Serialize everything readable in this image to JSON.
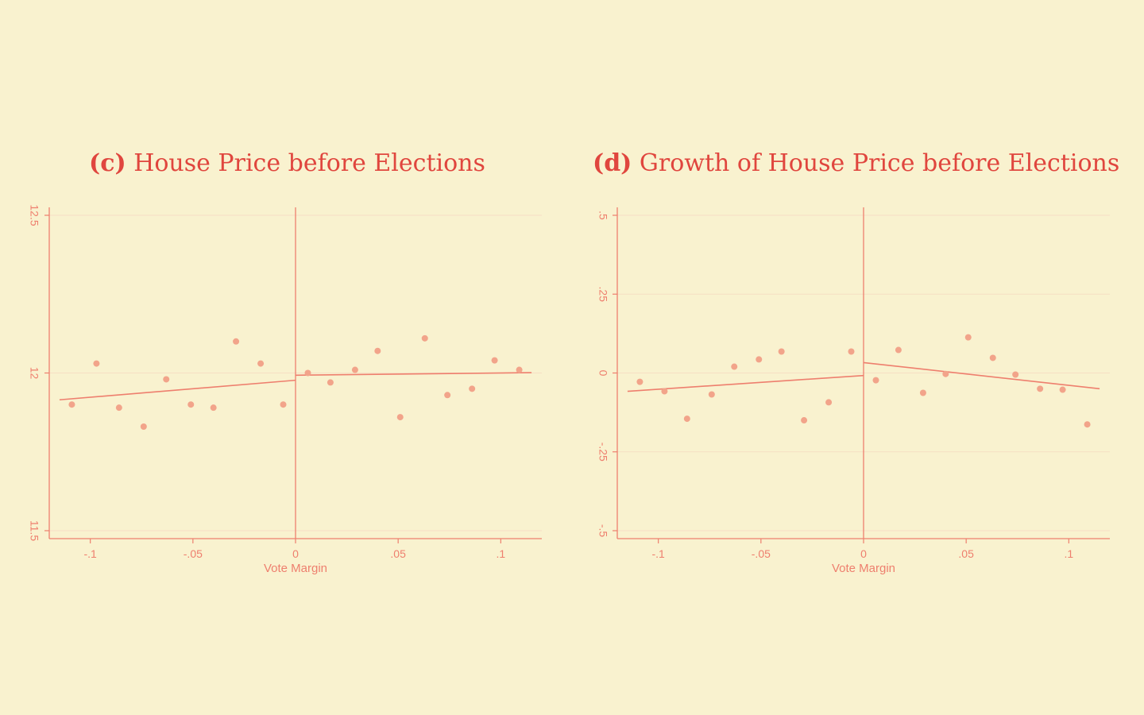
{
  "colors": {
    "background": "#f9f2cf",
    "title": "#e0463e",
    "axis": "#ee7f6e",
    "marker": "#f2a48a",
    "fit_line": "#ee7f6e",
    "grid": "#f6dfc4"
  },
  "panels": [
    {
      "tag": "(c)",
      "title": "House Price before Elections"
    },
    {
      "tag": "(d)",
      "title": "Growth of House Price before Elections"
    }
  ],
  "chart_data": [
    {
      "type": "scatter",
      "title": "(c) House Price before Elections",
      "xlabel": "Vote Margin",
      "ylabel": "",
      "xlim": [
        -0.12,
        0.12
      ],
      "ylim": [
        11.5,
        12.5
      ],
      "xticks": [
        -0.1,
        -0.05,
        0,
        0.05,
        0.1
      ],
      "xtick_labels": [
        "-.1",
        "-.05",
        "0",
        ".05",
        ".1"
      ],
      "yticks": [
        11.5,
        12,
        12.5
      ],
      "ytick_labels": [
        "11.5",
        "12",
        "12.5"
      ],
      "grid": true,
      "cutoff_line_x": 0,
      "points": [
        {
          "x": -0.109,
          "y": 11.9
        },
        {
          "x": -0.097,
          "y": 12.03
        },
        {
          "x": -0.086,
          "y": 11.89
        },
        {
          "x": -0.074,
          "y": 11.83
        },
        {
          "x": -0.063,
          "y": 11.98
        },
        {
          "x": -0.051,
          "y": 11.9
        },
        {
          "x": -0.04,
          "y": 11.89
        },
        {
          "x": -0.029,
          "y": 12.1
        },
        {
          "x": -0.017,
          "y": 12.03
        },
        {
          "x": -0.006,
          "y": 11.9
        },
        {
          "x": 0.006,
          "y": 12.0
        },
        {
          "x": 0.017,
          "y": 11.97
        },
        {
          "x": 0.029,
          "y": 12.01
        },
        {
          "x": 0.04,
          "y": 12.07
        },
        {
          "x": 0.051,
          "y": 11.86
        },
        {
          "x": 0.063,
          "y": 12.11
        },
        {
          "x": 0.074,
          "y": 11.93
        },
        {
          "x": 0.086,
          "y": 11.95
        },
        {
          "x": 0.097,
          "y": 12.04
        },
        {
          "x": 0.109,
          "y": 12.01
        }
      ],
      "fit_lines": [
        {
          "segment": "left",
          "x": [
            -0.115,
            0
          ],
          "y": [
            11.915,
            11.977
          ]
        },
        {
          "segment": "right",
          "x": [
            0,
            0.115
          ],
          "y": [
            11.993,
            12.001
          ]
        }
      ]
    },
    {
      "type": "scatter",
      "title": "(d) Growth of House Price before Elections",
      "xlabel": "Vote Margin",
      "ylabel": "",
      "xlim": [
        -0.12,
        0.12
      ],
      "ylim": [
        -0.5,
        0.5
      ],
      "xticks": [
        -0.1,
        -0.05,
        0,
        0.05,
        0.1
      ],
      "xtick_labels": [
        "-.1",
        "-.05",
        "0",
        ".05",
        ".1"
      ],
      "yticks": [
        -0.5,
        -0.25,
        0,
        0.25,
        0.5
      ],
      "ytick_labels": [
        "-.5",
        "-.25",
        "0",
        ".25",
        ".5"
      ],
      "grid": true,
      "cutoff_line_x": 0,
      "points": [
        {
          "x": -0.109,
          "y": -0.028
        },
        {
          "x": -0.097,
          "y": -0.058
        },
        {
          "x": -0.086,
          "y": -0.145
        },
        {
          "x": -0.074,
          "y": -0.068
        },
        {
          "x": -0.063,
          "y": 0.02
        },
        {
          "x": -0.051,
          "y": 0.043
        },
        {
          "x": -0.04,
          "y": 0.068
        },
        {
          "x": -0.029,
          "y": -0.15
        },
        {
          "x": -0.017,
          "y": -0.093
        },
        {
          "x": -0.006,
          "y": 0.068
        },
        {
          "x": 0.006,
          "y": -0.023
        },
        {
          "x": 0.017,
          "y": 0.073
        },
        {
          "x": 0.029,
          "y": -0.063
        },
        {
          "x": 0.04,
          "y": -0.003
        },
        {
          "x": 0.051,
          "y": 0.113
        },
        {
          "x": 0.063,
          "y": 0.048
        },
        {
          "x": 0.074,
          "y": -0.005
        },
        {
          "x": 0.086,
          "y": -0.05
        },
        {
          "x": 0.097,
          "y": -0.053
        },
        {
          "x": 0.109,
          "y": -0.163
        }
      ],
      "fit_lines": [
        {
          "segment": "left",
          "x": [
            -0.115,
            0
          ],
          "y": [
            -0.058,
            -0.008
          ]
        },
        {
          "segment": "right",
          "x": [
            0,
            0.115
          ],
          "y": [
            0.033,
            -0.05
          ]
        }
      ]
    }
  ]
}
